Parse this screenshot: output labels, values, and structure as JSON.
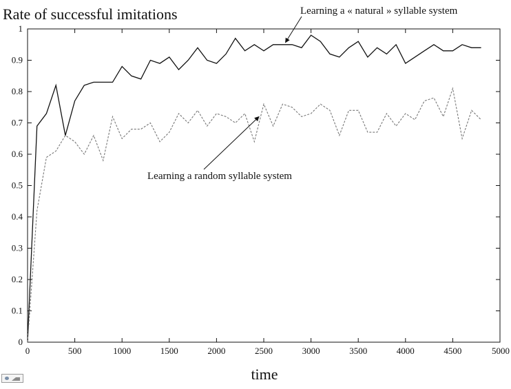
{
  "chart_data": {
    "type": "line",
    "title": "Rate of successful imitations",
    "xlabel": "time",
    "ylabel": "",
    "xlim": [
      0,
      5000
    ],
    "ylim": [
      0,
      1
    ],
    "xticks": [
      0,
      500,
      1000,
      1500,
      2000,
      2500,
      3000,
      3500,
      4000,
      4500,
      5000
    ],
    "yticks": [
      0,
      0.1,
      0.2,
      0.3,
      0.4,
      0.5,
      0.6,
      0.7,
      0.8,
      0.9,
      1
    ],
    "grid": false,
    "series": [
      {
        "name": "Learning a « natural » syllable system",
        "style": "solid",
        "color": "#111111",
        "x": [
          0,
          100,
          200,
          300,
          400,
          500,
          600,
          700,
          800,
          900,
          1000,
          1100,
          1200,
          1300,
          1400,
          1500,
          1600,
          1700,
          1800,
          1900,
          2000,
          2100,
          2200,
          2300,
          2400,
          2500,
          2600,
          2700,
          2800,
          2900,
          3000,
          3100,
          3200,
          3300,
          3400,
          3500,
          3600,
          3700,
          3800,
          3900,
          4000,
          4100,
          4200,
          4300,
          4400,
          4500,
          4600,
          4700,
          4800
        ],
        "y": [
          0.0,
          0.69,
          0.73,
          0.82,
          0.66,
          0.77,
          0.82,
          0.83,
          0.83,
          0.83,
          0.88,
          0.85,
          0.84,
          0.9,
          0.89,
          0.91,
          0.87,
          0.9,
          0.94,
          0.9,
          0.89,
          0.92,
          0.97,
          0.93,
          0.95,
          0.93,
          0.95,
          0.95,
          0.95,
          0.94,
          0.98,
          0.96,
          0.92,
          0.91,
          0.94,
          0.96,
          0.91,
          0.94,
          0.92,
          0.95,
          0.89,
          0.91,
          0.93,
          0.95,
          0.93,
          0.93,
          0.95,
          0.94,
          0.94
        ]
      },
      {
        "name": "Learning a random syllable system",
        "style": "dashed",
        "color": "#777777",
        "x": [
          0,
          100,
          200,
          300,
          400,
          500,
          600,
          700,
          800,
          900,
          1000,
          1100,
          1200,
          1300,
          1400,
          1500,
          1600,
          1700,
          1800,
          1900,
          2000,
          2100,
          2200,
          2300,
          2400,
          2500,
          2600,
          2700,
          2800,
          2900,
          3000,
          3100,
          3200,
          3300,
          3400,
          3500,
          3600,
          3700,
          3800,
          3900,
          4000,
          4100,
          4200,
          4300,
          4400,
          4500,
          4600,
          4700,
          4800
        ],
        "y": [
          0.0,
          0.42,
          0.59,
          0.61,
          0.66,
          0.64,
          0.6,
          0.66,
          0.58,
          0.72,
          0.65,
          0.68,
          0.68,
          0.7,
          0.64,
          0.67,
          0.73,
          0.7,
          0.74,
          0.69,
          0.73,
          0.72,
          0.7,
          0.73,
          0.64,
          0.76,
          0.69,
          0.76,
          0.75,
          0.72,
          0.73,
          0.76,
          0.74,
          0.66,
          0.74,
          0.74,
          0.67,
          0.67,
          0.73,
          0.69,
          0.73,
          0.71,
          0.77,
          0.78,
          0.72,
          0.81,
          0.65,
          0.74,
          0.71
        ]
      }
    ],
    "annotations": [
      {
        "text": "Learning a « natural » syllable system",
        "target": [
          2700,
          0.95
        ]
      },
      {
        "text": "Learning a random syllable system",
        "target": [
          2100,
          0.72
        ]
      }
    ]
  }
}
